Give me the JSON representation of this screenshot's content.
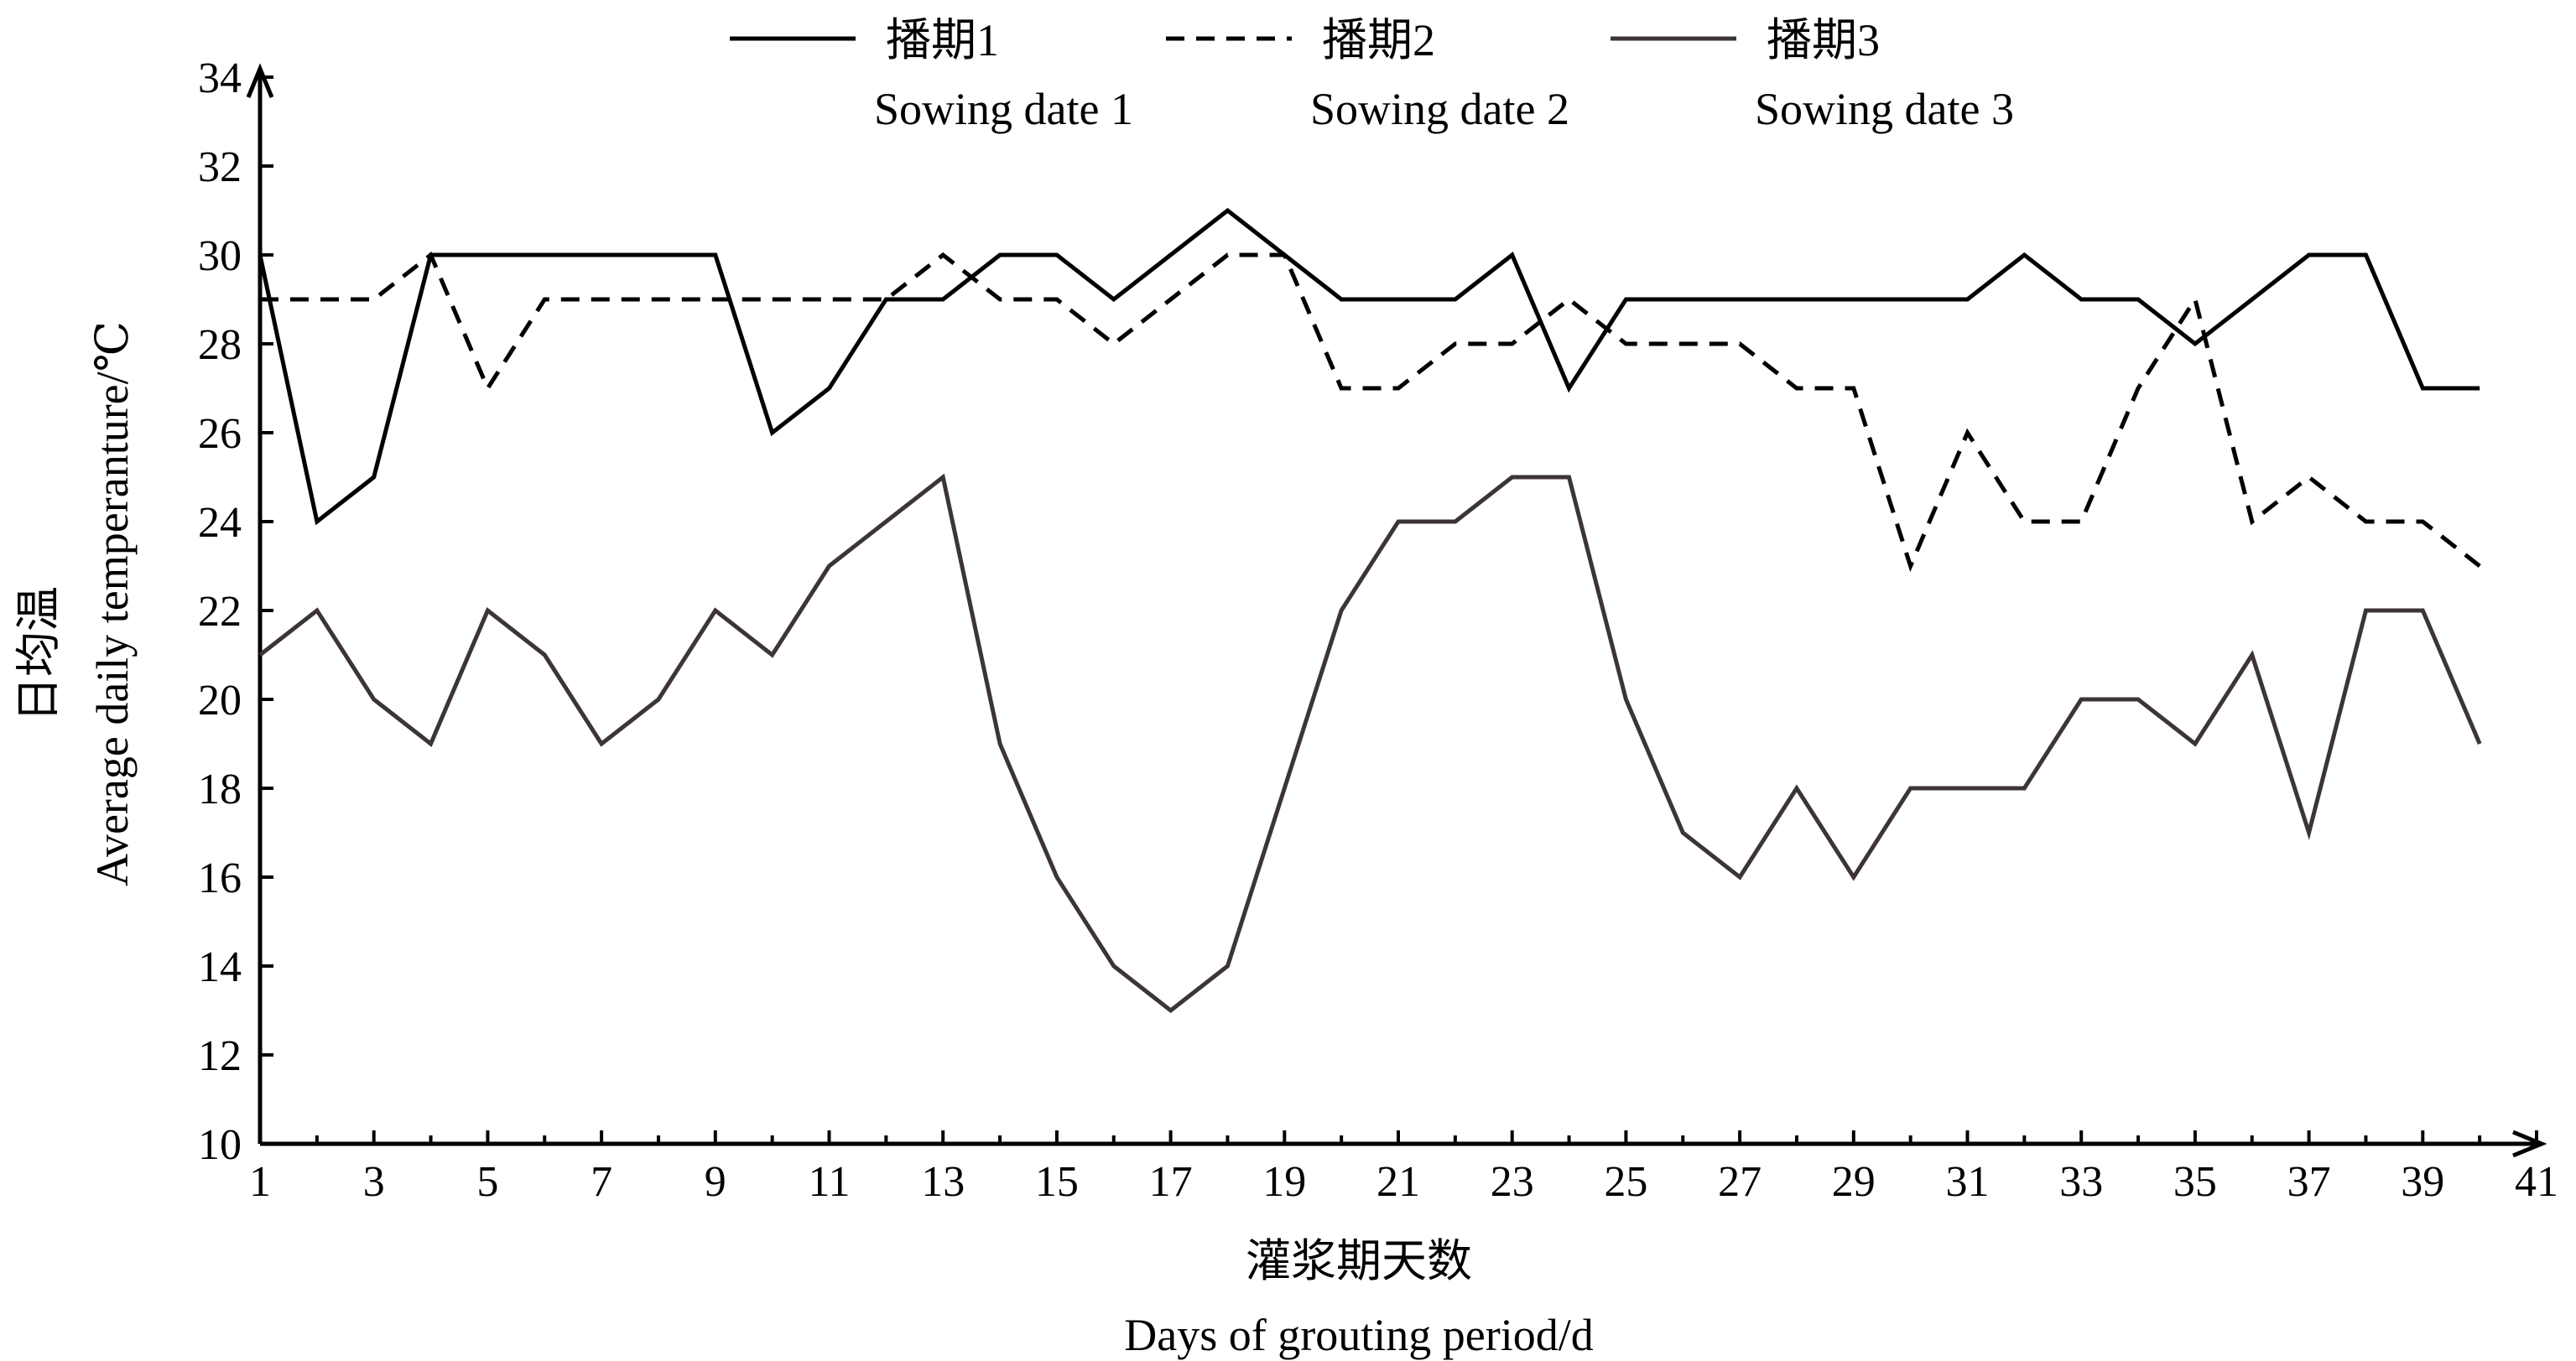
{
  "chart_data": {
    "type": "line",
    "xlabel": {
      "zh": "灌浆期天数",
      "en": "Days of grouting period/d"
    },
    "ylabel": {
      "zh": "日均温",
      "en": "Average daily temperanture/℃"
    },
    "x": [
      1,
      2,
      3,
      4,
      5,
      6,
      7,
      8,
      9,
      10,
      11,
      12,
      13,
      14,
      15,
      16,
      17,
      18,
      19,
      20,
      21,
      22,
      23,
      24,
      25,
      26,
      27,
      28,
      29,
      30,
      31,
      32,
      33,
      34,
      35,
      36,
      37,
      38,
      39,
      40
    ],
    "xlim": [
      1,
      41
    ],
    "ylim": [
      10,
      34
    ],
    "x_ticks": [
      "1",
      "3",
      "5",
      "7",
      "9",
      "11",
      "13",
      "15",
      "17",
      "19",
      "21",
      "23",
      "25",
      "27",
      "29",
      "31",
      "33",
      "35",
      "37",
      "39",
      "41"
    ],
    "y_ticks": [
      "10",
      "12",
      "14",
      "16",
      "18",
      "20",
      "22",
      "24",
      "26",
      "28",
      "30",
      "32",
      "34"
    ],
    "legend_position": "top",
    "series": [
      {
        "name_zh": "播期1",
        "name_en": "Sowing date 1",
        "style": "solid",
        "color": "#000000",
        "values": [
          30,
          24,
          25,
          30,
          30,
          30,
          30,
          30,
          30,
          26,
          27,
          29,
          29,
          30,
          30,
          29,
          30,
          31,
          30,
          29,
          29,
          29,
          30,
          27,
          29,
          29,
          29,
          29,
          29,
          29,
          29,
          30,
          29,
          29,
          28,
          29,
          30,
          30,
          27,
          27
        ]
      },
      {
        "name_zh": "播期2",
        "name_en": "Sowing date 2",
        "style": "dashed",
        "color": "#000000",
        "values": [
          29,
          29,
          29,
          30,
          27,
          29,
          29,
          29,
          29,
          29,
          29,
          29,
          30,
          29,
          29,
          28,
          29,
          30,
          30,
          27,
          27,
          28,
          28,
          29,
          28,
          28,
          28,
          27,
          27,
          23,
          26,
          24,
          24,
          27,
          29,
          24,
          25,
          24,
          24,
          23
        ]
      },
      {
        "name_zh": "播期3",
        "name_en": "Sowing date 3",
        "style": "solid",
        "color": "#3d3535",
        "values": [
          21,
          22,
          20,
          19,
          22,
          21,
          19,
          20,
          22,
          21,
          23,
          24,
          25,
          19,
          16,
          14,
          13,
          14,
          18,
          22,
          24,
          24,
          25,
          25,
          20,
          17,
          16,
          18,
          16,
          18,
          18,
          18,
          20,
          20,
          19,
          21,
          17,
          22,
          22,
          19
        ]
      }
    ]
  }
}
